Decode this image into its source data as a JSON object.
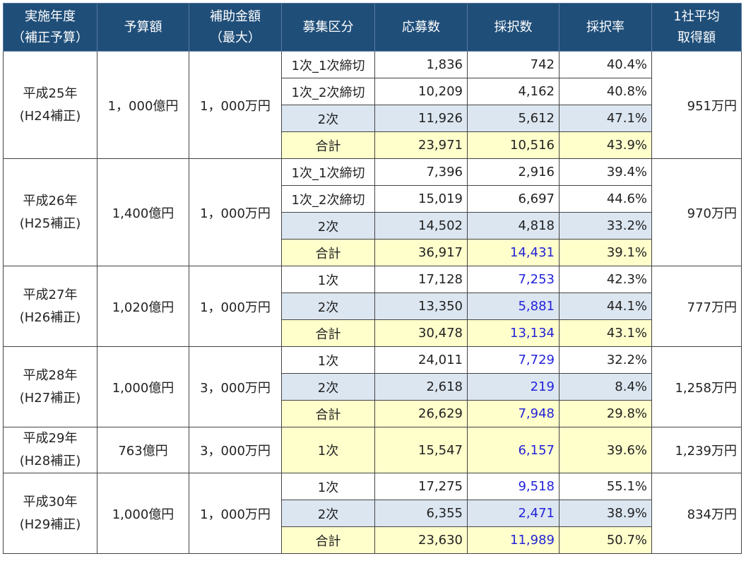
{
  "headers": [
    "実施年度\n（補正予算）",
    "予算額",
    "補助金額\n（最大）",
    "募集区分",
    "応募数",
    "採択数",
    "採択率",
    "1社平均\n取得額"
  ],
  "years": [
    {
      "year": "平成25年\n(H24補正)",
      "budget": "1，000億円",
      "max": "1，000万円",
      "avg": "951万円",
      "rows": [
        {
          "kubun": "1次_1次締切",
          "apply": "1,836",
          "adopt": "742",
          "rate": "40.4%",
          "style": "white",
          "blue": false,
          "sub": true
        },
        {
          "kubun": "1次_2次締切",
          "apply": "10,209",
          "adopt": "4,162",
          "rate": "40.8%",
          "style": "white",
          "blue": false,
          "sub": false
        },
        {
          "kubun": "2次",
          "apply": "11,926",
          "adopt": "5,612",
          "rate": "47.1%",
          "style": "blue",
          "blue": false
        },
        {
          "kubun": "合計",
          "apply": "23,971",
          "adopt": "10,516",
          "rate": "43.9%",
          "style": "yellow",
          "blue": false
        }
      ]
    },
    {
      "year": "平成26年\n(H25補正)",
      "budget": "1,400億円",
      "max": "1，000万円",
      "avg": "970万円",
      "rows": [
        {
          "kubun": "1次_1次締切",
          "apply": "7,396",
          "adopt": "2,916",
          "rate": "39.4%",
          "style": "white",
          "blue": false,
          "sub": true
        },
        {
          "kubun": "1次_2次締切",
          "apply": "15,019",
          "adopt": "6,697",
          "rate": "44.6%",
          "style": "white",
          "blue": false
        },
        {
          "kubun": "2次",
          "apply": "14,502",
          "adopt": "4,818",
          "rate": "33.2%",
          "style": "blue",
          "blue": false
        },
        {
          "kubun": "合計",
          "apply": "36,917",
          "adopt": "14,431",
          "rate": "39.1%",
          "style": "yellow",
          "blue": true
        }
      ]
    },
    {
      "year": "平成27年\n(H26補正)",
      "budget": "1,020億円",
      "max": "1，000万円",
      "avg": "777万円",
      "rows": [
        {
          "kubun": "1次",
          "apply": "17,128",
          "adopt": "7,253",
          "rate": "42.3%",
          "style": "white",
          "blue": true
        },
        {
          "kubun": "2次",
          "apply": "13,350",
          "adopt": "5,881",
          "rate": "44.1%",
          "style": "blue",
          "blue": true
        },
        {
          "kubun": "合計",
          "apply": "30,478",
          "adopt": "13,134",
          "rate": "43.1%",
          "style": "yellow",
          "blue": true
        }
      ]
    },
    {
      "year": "平成28年\n(H27補正)",
      "budget": "1,000億円",
      "max": "3，000万円",
      "avg": "1,258万円",
      "rows": [
        {
          "kubun": "1次",
          "apply": "24,011",
          "adopt": "7,729",
          "rate": "32.2%",
          "style": "white",
          "blue": true
        },
        {
          "kubun": "2次",
          "apply": "2,618",
          "adopt": "219",
          "rate": "8.4%",
          "style": "blue",
          "blue": true
        },
        {
          "kubun": "合計",
          "apply": "26,629",
          "adopt": "7,948",
          "rate": "29.8%",
          "style": "yellow",
          "blue": true
        }
      ]
    },
    {
      "year": "平成29年\n(H28補正)",
      "budget": "763億円",
      "max": "3，000万円",
      "avg": "1,239万円",
      "single": true,
      "rows": [
        {
          "kubun": "1次",
          "apply": "15,547",
          "adopt": "6,157",
          "rate": "39.6%",
          "style": "yellow",
          "blue": true
        }
      ]
    },
    {
      "year": "平成30年\n(H29補正)",
      "budget": "1,000億円",
      "max": "1，000万円",
      "avg": "834万円",
      "rows": [
        {
          "kubun": "1次",
          "apply": "17,275",
          "adopt": "9,518",
          "rate": "55.1%",
          "style": "white",
          "blue": true
        },
        {
          "kubun": "2次",
          "apply": "6,355",
          "adopt": "2,471",
          "rate": "38.9%",
          "style": "blue",
          "blue": true
        },
        {
          "kubun": "合計",
          "apply": "23,630",
          "adopt": "11,989",
          "rate": "50.7%",
          "style": "yellow",
          "blue": true
        }
      ]
    }
  ]
}
